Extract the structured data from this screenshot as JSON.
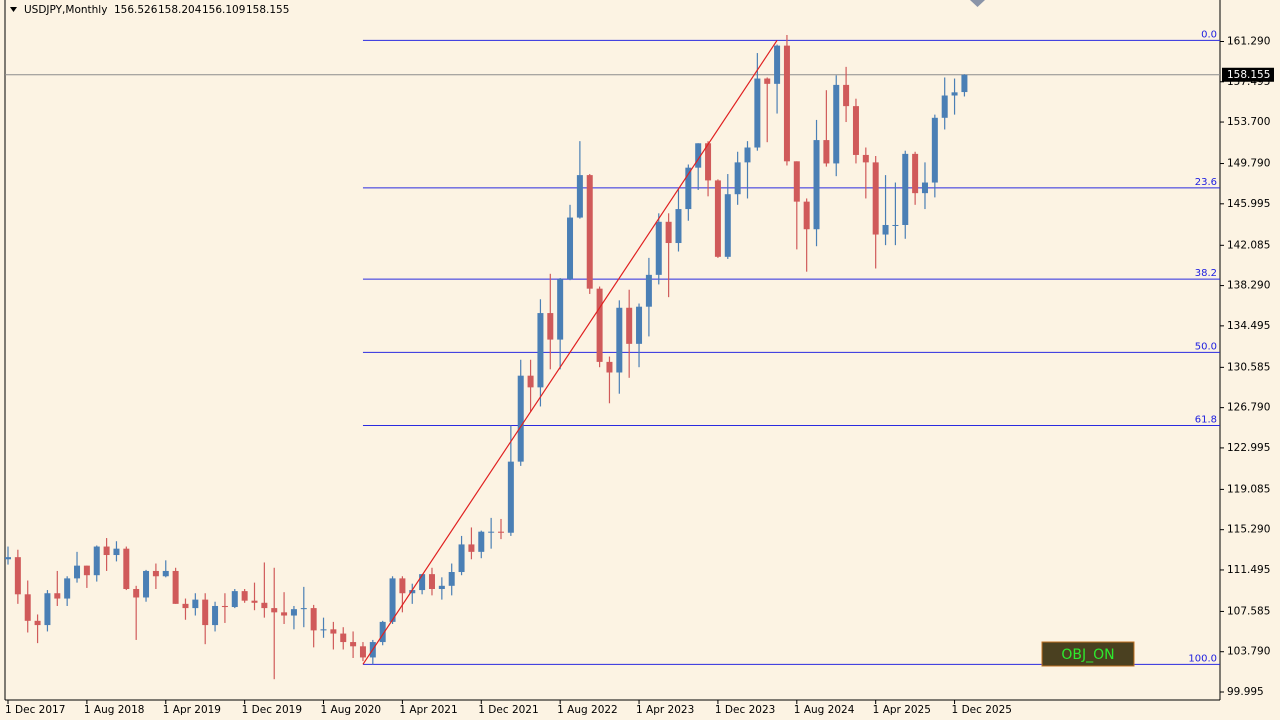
{
  "chart_data": {
    "type": "candlestick",
    "symbol": "USDJPY,Monthly",
    "bull_color": "#4a7fb5",
    "bear_color": "#d05a5a",
    "categories": [
      "1 Dec 2017",
      null,
      null,
      null,
      null,
      null,
      null,
      null,
      "1 Aug 2018",
      null,
      null,
      null,
      null,
      null,
      null,
      null,
      "1 Apr 2019",
      null,
      null,
      null,
      null,
      null,
      null,
      null,
      "1 Dec 2019",
      null,
      null,
      null,
      null,
      null,
      null,
      null,
      "1 Aug 2020",
      null,
      null,
      null,
      null,
      null,
      null,
      null,
      "1 Apr 2021",
      null,
      null,
      null,
      null,
      null,
      null,
      null,
      "1 Dec 2021",
      null,
      null,
      null,
      null,
      null,
      null,
      null,
      "1 Aug 2022",
      null,
      null,
      null,
      null,
      null,
      null,
      null,
      "1 Apr 2023",
      null,
      null,
      null,
      null,
      null,
      null,
      null,
      "1 Dec 2023",
      null,
      null,
      null,
      null,
      null,
      null,
      null,
      "1 Aug 2024",
      null,
      null,
      null,
      null,
      null,
      null,
      null,
      "1 Apr 2025",
      null,
      null,
      null,
      null,
      null,
      null,
      null,
      "1 Dec 2025",
      null
    ],
    "open": [
      112.5,
      112.7,
      109.2,
      106.7,
      106.3,
      109.3,
      108.8,
      110.7,
      111.9,
      111.0,
      113.7,
      112.9,
      113.5,
      109.7,
      108.9,
      111.4,
      110.9,
      111.4,
      108.3,
      107.9,
      108.7,
      106.3,
      108.1,
      108.0,
      109.5,
      108.6,
      108.4,
      107.9,
      107.5,
      107.2,
      107.8,
      107.9,
      105.8,
      105.9,
      105.5,
      104.7,
      104.3,
      103.25,
      104.7,
      106.6,
      110.7,
      109.3,
      109.6,
      111.1,
      109.7,
      110.0,
      111.3,
      113.9,
      113.2,
      115.1,
      115.1,
      115.0,
      121.7,
      129.8,
      128.7,
      135.7,
      133.2,
      138.9,
      144.7,
      148.7,
      138.0,
      131.1,
      130.1,
      136.2,
      132.8,
      136.3,
      139.3,
      144.3,
      142.3,
      145.5,
      149.4,
      151.7,
      148.2,
      141.0,
      146.9,
      149.9,
      151.3,
      157.8,
      157.3,
      160.9,
      150.0,
      146.2,
      143.6,
      152.0,
      149.8,
      157.2,
      155.2,
      150.6,
      149.9,
      143.1,
      144.0,
      144.0,
      150.7,
      147.0,
      148.0,
      154.1,
      156.2,
      156.526
    ],
    "high": [
      113.7,
      113.4,
      110.5,
      107.3,
      109.6,
      111.4,
      110.9,
      113.2,
      111.9,
      113.8,
      114.5,
      114.2,
      113.7,
      110.0,
      111.5,
      112.1,
      112.4,
      111.7,
      108.8,
      109.3,
      109.3,
      108.5,
      109.3,
      109.7,
      109.7,
      110.3,
      112.2,
      111.7,
      109.4,
      108.1,
      109.9,
      108.2,
      107.0,
      106.6,
      106.1,
      105.7,
      104.7,
      104.9,
      106.7,
      110.9,
      110.9,
      110.2,
      111.1,
      111.7,
      110.8,
      112.1,
      114.7,
      115.5,
      115.2,
      116.4,
      116.3,
      125.1,
      131.3,
      131.3,
      137.0,
      139.4,
      139.0,
      145.9,
      151.9,
      148.8,
      138.2,
      131.6,
      136.9,
      137.9,
      136.6,
      140.9,
      145.1,
      145.1,
      147.4,
      149.7,
      151.7,
      151.9,
      148.3,
      148.8,
      150.9,
      151.9,
      160.2,
      157.9,
      161.0,
      161.9,
      150.0,
      146.5,
      153.9,
      156.7,
      158.1,
      158.9,
      155.9,
      151.3,
      150.5,
      148.7,
      148.0,
      151.0,
      150.9,
      149.9,
      154.4,
      157.9,
      157.8,
      158.204
    ],
    "low": [
      112.0,
      108.3,
      105.6,
      104.6,
      105.7,
      108.1,
      108.1,
      110.3,
      109.8,
      110.4,
      111.4,
      112.3,
      109.6,
      104.9,
      108.5,
      109.7,
      110.8,
      108.3,
      106.8,
      107.2,
      104.5,
      105.7,
      106.5,
      107.9,
      108.4,
      107.7,
      107.0,
      101.2,
      106.4,
      105.9,
      106.1,
      104.2,
      105.1,
      104.0,
      104.0,
      103.2,
      102.9,
      102.6,
      104.4,
      106.4,
      107.5,
      108.3,
      109.2,
      109.1,
      108.7,
      109.1,
      111.0,
      112.5,
      112.6,
      113.5,
      114.4,
      114.7,
      121.3,
      126.4,
      126.9,
      130.4,
      130.4,
      138.8,
      144.6,
      137.5,
      130.6,
      127.2,
      128.1,
      129.6,
      130.6,
      133.5,
      138.4,
      137.2,
      141.5,
      144.4,
      147.3,
      146.7,
      140.9,
      140.8,
      145.9,
      146.5,
      151.0,
      151.8,
      154.5,
      149.6,
      141.7,
      139.6,
      142.0,
      149.5,
      148.6,
      153.7,
      149.8,
      146.5,
      139.9,
      142.1,
      142.1,
      142.7,
      145.9,
      145.5,
      146.6,
      153.0,
      154.4,
      156.109
    ],
    "close": [
      112.7,
      109.2,
      106.7,
      106.3,
      109.3,
      108.8,
      110.7,
      111.9,
      111.0,
      113.7,
      112.9,
      113.5,
      109.7,
      108.9,
      111.4,
      110.9,
      111.4,
      108.3,
      107.9,
      108.7,
      106.3,
      108.1,
      108.0,
      109.5,
      108.6,
      108.4,
      107.9,
      107.5,
      107.2,
      107.8,
      107.9,
      105.8,
      105.9,
      105.5,
      104.7,
      104.3,
      103.25,
      104.7,
      106.6,
      110.7,
      109.3,
      109.6,
      111.1,
      109.7,
      110.0,
      111.3,
      113.9,
      113.2,
      115.1,
      115.1,
      115.0,
      121.7,
      129.8,
      128.7,
      135.7,
      133.2,
      138.9,
      144.7,
      148.7,
      138.0,
      131.1,
      130.1,
      136.2,
      132.8,
      136.3,
      139.3,
      144.3,
      142.3,
      145.5,
      149.4,
      151.7,
      148.2,
      141.0,
      146.9,
      149.9,
      151.3,
      157.8,
      157.3,
      160.9,
      150.0,
      146.2,
      143.6,
      152.0,
      149.8,
      157.2,
      155.2,
      150.6,
      149.9,
      143.1,
      144.0,
      144.0,
      150.7,
      147.0,
      148.0,
      154.1,
      156.2,
      156.5,
      158.155
    ],
    "ylim": [
      99.24,
      165.2
    ],
    "yticks": [
      {
        "value": 161.29,
        "label": "161.290"
      },
      157.495,
      {
        "value": 153.7,
        "label": "153.700"
      },
      {
        "value": 149.79,
        "label": "149.790"
      },
      145.995,
      142.085,
      {
        "value": 138.29,
        "label": "138.290"
      },
      134.495,
      130.585,
      {
        "value": 126.79,
        "label": "126.790"
      },
      122.995,
      119.085,
      {
        "value": 115.29,
        "label": "115.290"
      },
      111.495,
      107.585,
      {
        "value": 103.79,
        "label": "103.790"
      },
      99.995
    ],
    "current_price": 158.155,
    "fib_color": "#2a2ae0",
    "fib_levels": [
      {
        "label": "0.0",
        "price": 161.4
      },
      {
        "label": "23.6",
        "price": 147.5
      },
      {
        "label": "38.2",
        "price": 138.9
      },
      {
        "label": "50.0",
        "price": 132.0
      },
      {
        "label": "61.8",
        "price": 125.1
      },
      {
        "label": "100.0",
        "price": 102.6
      }
    ],
    "trendline": {
      "start_index": 36,
      "start_price": 102.6,
      "end_index": 78,
      "end_price": 161.4,
      "color": "#e02020"
    },
    "button": "OBJ_ON"
  }
}
